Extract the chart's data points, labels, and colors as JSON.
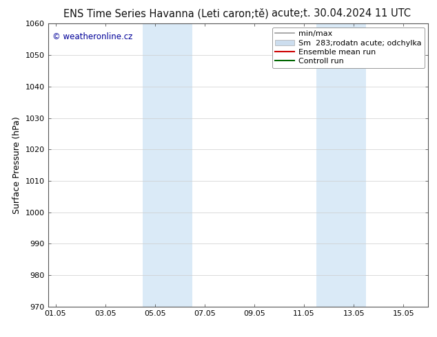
{
  "title_left": "ENS Time Series Havanna (Leti caron;tě)",
  "title_right": "acute;t. 30.04.2024 11 UTC",
  "ylabel": "Surface Pressure (hPa)",
  "ylim": [
    970,
    1060
  ],
  "yticks": [
    970,
    980,
    990,
    1000,
    1010,
    1020,
    1030,
    1040,
    1050,
    1060
  ],
  "xlabels": [
    "01.05",
    "03.05",
    "05.05",
    "07.05",
    "09.05",
    "11.05",
    "13.05",
    "15.05"
  ],
  "xvalues": [
    0,
    2,
    4,
    6,
    8,
    10,
    12,
    14
  ],
  "xlim": [
    -0.3,
    15.0
  ],
  "shade_bands": [
    {
      "xmin": 3.5,
      "xmax": 5.5,
      "color": "#daeaf7"
    },
    {
      "xmin": 10.5,
      "xmax": 12.5,
      "color": "#daeaf7"
    }
  ],
  "legend_entries": [
    {
      "label": "min/max",
      "color": "#999999",
      "lw": 1.2,
      "linestyle": "-",
      "type": "line"
    },
    {
      "label": "Sm  283;rodatn acute; odchylka",
      "color": "#ccddee",
      "lw": 8,
      "linestyle": "-",
      "type": "patch"
    },
    {
      "label": "Ensemble mean run",
      "color": "#cc0000",
      "lw": 1.5,
      "linestyle": "-",
      "type": "line"
    },
    {
      "label": "Controll run",
      "color": "#006600",
      "lw": 1.5,
      "linestyle": "-",
      "type": "line"
    }
  ],
  "copyright_text": "© weatheronline.cz",
  "bg_color": "#ffffff",
  "plot_bg_color": "#ffffff",
  "grid_color": "#cccccc",
  "title_fontsize": 10.5,
  "axis_label_fontsize": 9,
  "tick_fontsize": 8,
  "legend_fontsize": 8
}
